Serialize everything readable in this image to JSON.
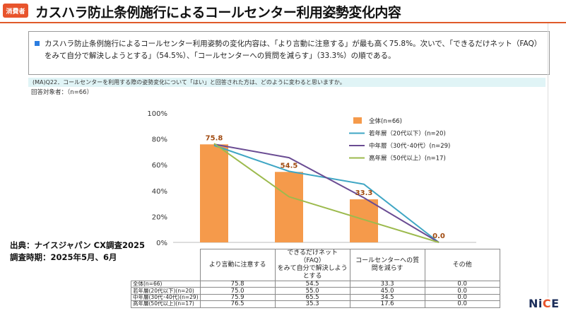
{
  "header": {
    "tag": "消費者",
    "title": "カスハラ防止条例施行によるコールセンター利用姿勢変化内容",
    "accent_color": "#e8542c"
  },
  "summary": {
    "text": "カスハラ防止条例施行によるコールセンター利用姿勢の変化内容は、「より言動に注意する」が最も高く75.8%。次いで、「できるだけネット（FAQ）をみて自分で解決しようとする」（54.5%）、「コールセンターへの質問を減らす」（33.3%）の順である。"
  },
  "question": {
    "text": "(MA)Q22．コールセンターを利用する際の姿勢変化について「はい」と回答された方は、どのように変わると思いますか。",
    "respondents": "回答対象者：（n=66）"
  },
  "source": {
    "line1": "出典：ナイスジャパン CX調査2025",
    "line2": "調査時期：2025年5月、6月"
  },
  "logo": {
    "prefix": "Ni",
    "accent": "C",
    "suffix": "E"
  },
  "chart_data": {
    "type": "bar",
    "categories": [
      "より言動に注意する",
      "できるだけネット（FAQ）をみて自分で解決しようとする",
      "コールセンターへの質問を減らす",
      "その他"
    ],
    "category_lines": [
      [
        "より言動に注意する"
      ],
      [
        "できるだけネット（FAQ）",
        "をみて自分で解決しよう",
        "とする"
      ],
      [
        "コールセンターへの質",
        "問を減らす"
      ],
      [
        "その他"
      ]
    ],
    "ylim": [
      0,
      100
    ],
    "yticks": [
      0,
      20,
      40,
      60,
      80,
      100
    ],
    "ytick_labels": [
      "0%",
      "20%",
      "40%",
      "60%",
      "80%",
      "100%"
    ],
    "bar_series": {
      "name": "全体(n=66)",
      "color": "#f59a4b",
      "values": [
        75.8,
        54.5,
        33.3,
        0.0
      ],
      "value_labels": [
        "75.8",
        "54.5",
        "33.3",
        "0.0"
      ],
      "label_color": "#a04a10"
    },
    "line_series": [
      {
        "name": "若年層（20代以下）(n=20)",
        "color": "#3fa6c4",
        "values": [
          75.0,
          55.0,
          45.0,
          0.0
        ]
      },
      {
        "name": "中年層（30代･40代）(n=29)",
        "color": "#6a4c93",
        "values": [
          75.9,
          65.5,
          34.5,
          0.0
        ]
      },
      {
        "name": "高年層（50代以上）(n=17)",
        "color": "#9cba4d",
        "values": [
          76.5,
          35.3,
          17.6,
          0.0
        ]
      }
    ],
    "legend_position": "right",
    "grid": false
  },
  "table": {
    "rows": [
      {
        "label": "全体(n=66)",
        "values": [
          "75.8",
          "54.5",
          "33.3",
          "0.0"
        ]
      },
      {
        "label": "若年層(20代以下)(n=20)",
        "values": [
          "75.0",
          "55.0",
          "45.0",
          "0.0"
        ]
      },
      {
        "label": "中年層(30代･40代)(n=29)",
        "values": [
          "75.9",
          "65.5",
          "34.5",
          "0.0"
        ]
      },
      {
        "label": "高年層(50代以上)(n=17)",
        "values": [
          "76.5",
          "35.3",
          "17.6",
          "0.0"
        ]
      }
    ]
  }
}
